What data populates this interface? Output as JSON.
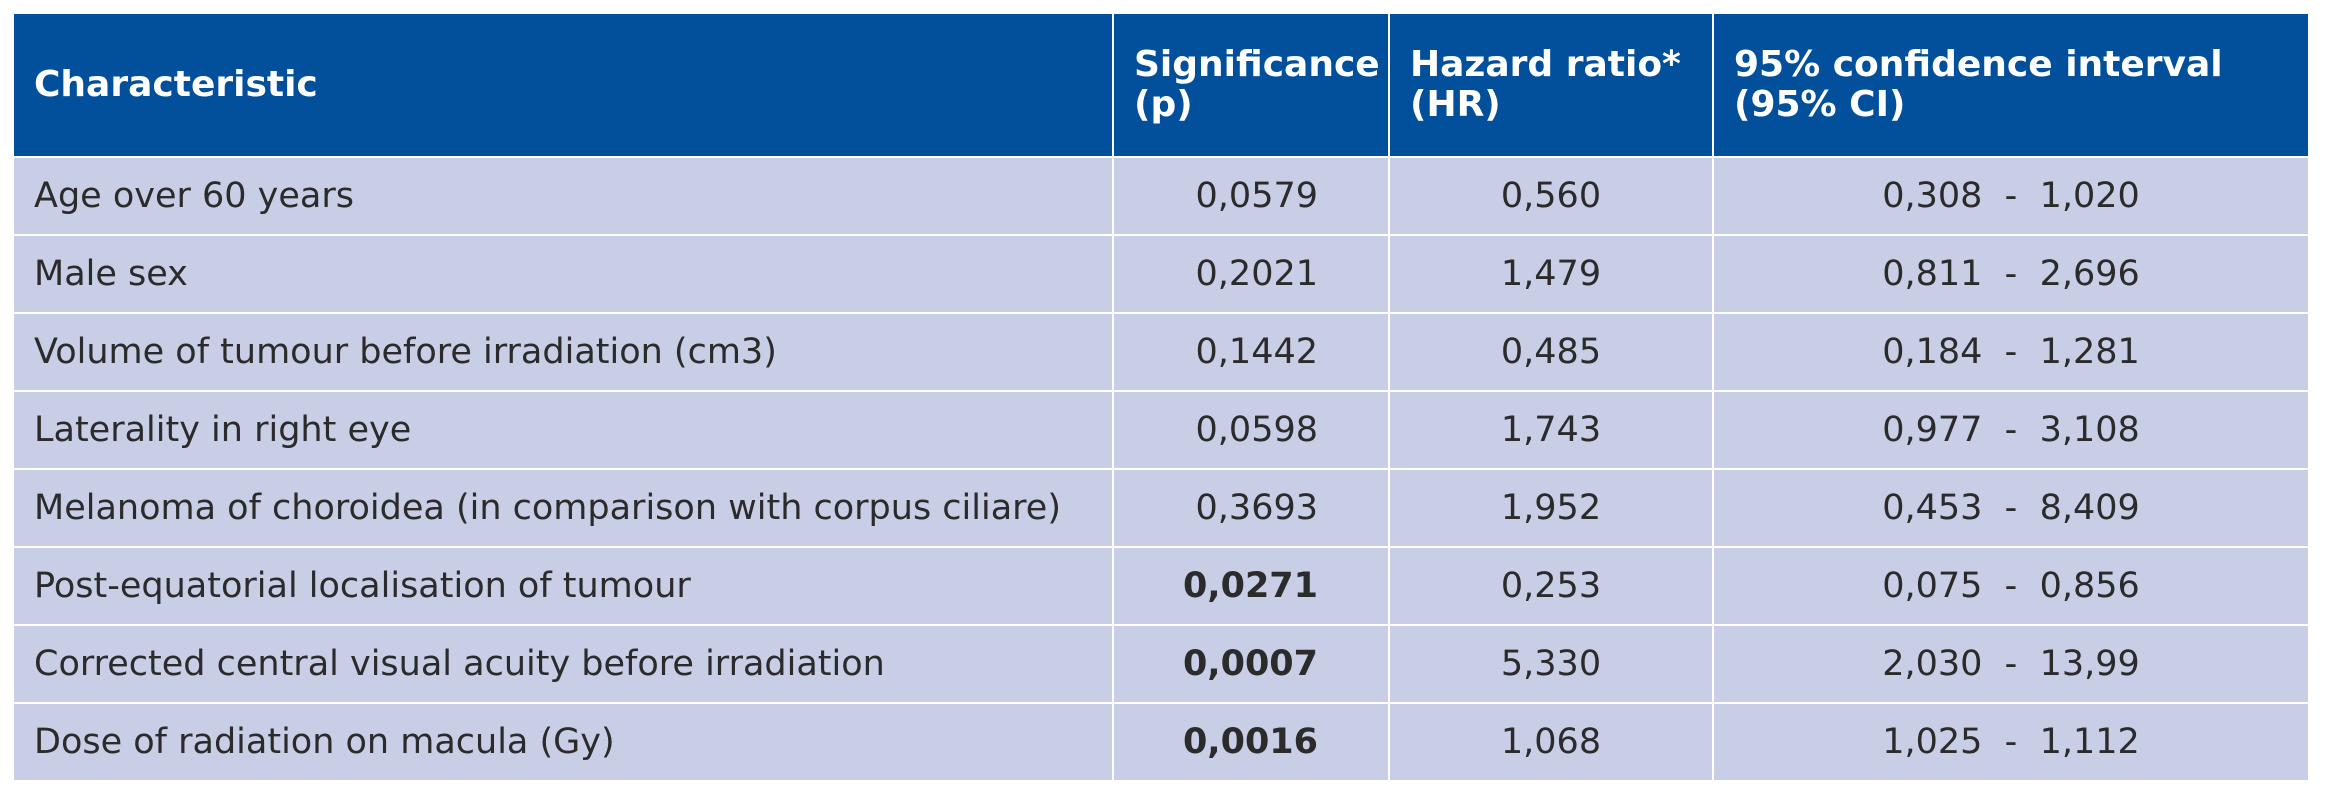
{
  "table": {
    "headers": [
      {
        "line1": "Characteristic",
        "line2": ""
      },
      {
        "line1": "Significance",
        "line2": "(p)"
      },
      {
        "line1": "Hazard ratio*",
        "line2": "(HR)"
      },
      {
        "line1": "95% confidence interval",
        "line2": "(95% CI)"
      }
    ],
    "rows": [
      {
        "characteristic": "Age over 60 years",
        "p": "0,0579",
        "p_bold": false,
        "hr": "0,560",
        "ci": "0,308  -  1,020"
      },
      {
        "characteristic": "Male sex",
        "p": "0,2021",
        "p_bold": false,
        "hr": "1,479",
        "ci": "0,811  -  2,696"
      },
      {
        "characteristic": "Volume of tumour before irradiation (cm3)",
        "p": "0,1442",
        "p_bold": false,
        "hr": "0,485",
        "ci": "0,184  -  1,281"
      },
      {
        "characteristic": "Laterality in right eye",
        "p": "0,0598",
        "p_bold": false,
        "hr": "1,743",
        "ci": "0,977  -  3,108"
      },
      {
        "characteristic": "Melanoma of choroidea (in comparison with corpus ciliare)",
        "p": "0,3693",
        "p_bold": false,
        "hr": "1,952",
        "ci": "0,453  -  8,409"
      },
      {
        "characteristic": "Post-equatorial localisation of tumour",
        "p": "0,0271",
        "p_bold": true,
        "hr": "0,253",
        "ci": "0,075  -  0,856"
      },
      {
        "characteristic": "Corrected central visual acuity before irradiation",
        "p": "0,0007",
        "p_bold": true,
        "hr": "5,330",
        "ci": "2,030  -  13,99"
      },
      {
        "characteristic": "Dose of radiation on macula (Gy)",
        "p": "0,0016",
        "p_bold": true,
        "hr": "1,068",
        "ci": "1,025  -  1,112"
      }
    ]
  },
  "colors": {
    "header_bg": "#02509b",
    "row_bg": "#c7cee6"
  }
}
